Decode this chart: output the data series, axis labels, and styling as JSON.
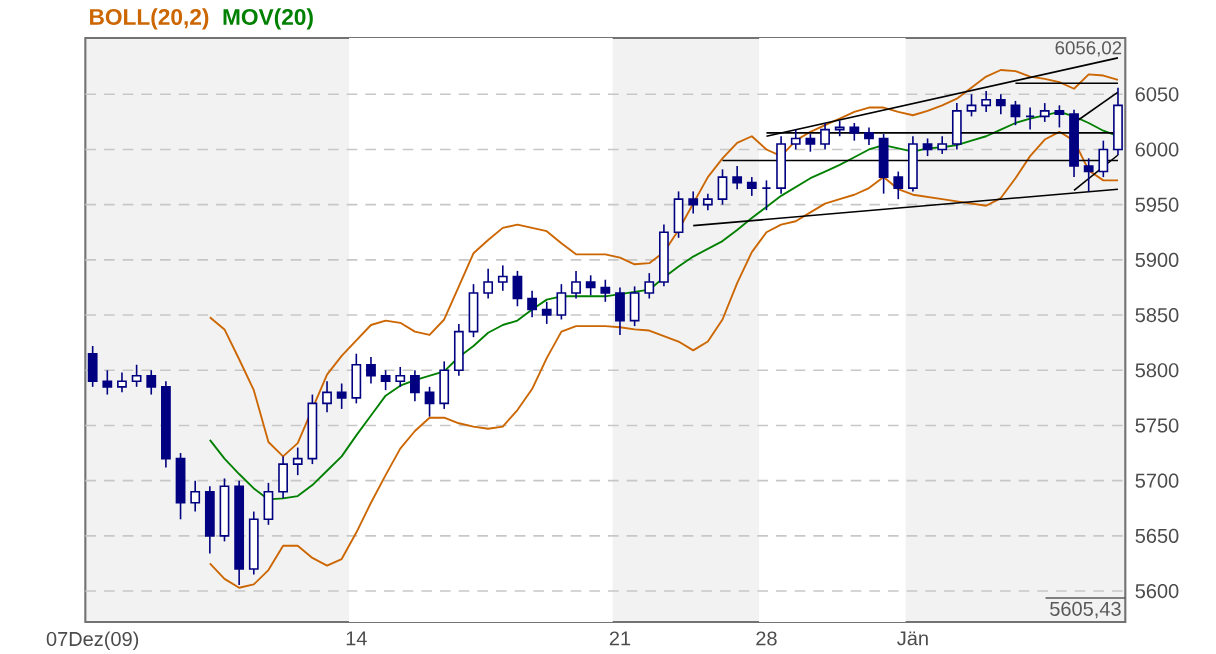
{
  "chart_data": {
    "type": "candlestick",
    "color": "#000080",
    "categories": [
      "07Dez(09)",
      null,
      null,
      null,
      null,
      null,
      null,
      null,
      null,
      null,
      null,
      null,
      null,
      null,
      null,
      null,
      null,
      null,
      "14",
      null,
      null,
      null,
      null,
      null,
      null,
      null,
      null,
      null,
      null,
      null,
      null,
      null,
      null,
      null,
      null,
      null,
      "21",
      null,
      null,
      null,
      null,
      null,
      null,
      null,
      null,
      null,
      "28",
      null,
      null,
      null,
      null,
      null,
      null,
      null,
      null,
      null,
      "Jän",
      null,
      null,
      null,
      null,
      null,
      null,
      null,
      null,
      null,
      null,
      null,
      null,
      null,
      null
    ],
    "ohlc": [
      [
        5815,
        5822,
        5785,
        5790
      ],
      [
        5790,
        5800,
        5778,
        5785
      ],
      [
        5785,
        5798,
        5780,
        5790
      ],
      [
        5790,
        5805,
        5785,
        5795
      ],
      [
        5795,
        5800,
        5778,
        5785
      ],
      [
        5785,
        5790,
        5712,
        5720
      ],
      [
        5720,
        5725,
        5665,
        5680
      ],
      [
        5680,
        5700,
        5672,
        5690
      ],
      [
        5690,
        5695,
        5634,
        5650
      ],
      [
        5650,
        5702,
        5645,
        5695
      ],
      [
        5695,
        5700,
        5605.43,
        5620
      ],
      [
        5620,
        5672,
        5615,
        5665
      ],
      [
        5665,
        5698,
        5660,
        5690
      ],
      [
        5690,
        5722,
        5684,
        5715
      ],
      [
        5715,
        5730,
        5705,
        5720
      ],
      [
        5720,
        5778,
        5715,
        5770
      ],
      [
        5770,
        5790,
        5762,
        5780
      ],
      [
        5780,
        5788,
        5765,
        5775
      ],
      [
        5775,
        5815,
        5770,
        5805
      ],
      [
        5805,
        5812,
        5788,
        5795
      ],
      [
        5795,
        5800,
        5782,
        5790
      ],
      [
        5790,
        5803,
        5785,
        5795
      ],
      [
        5795,
        5800,
        5772,
        5780
      ],
      [
        5780,
        5785,
        5758,
        5770
      ],
      [
        5770,
        5808,
        5765,
        5800
      ],
      [
        5800,
        5842,
        5795,
        5835
      ],
      [
        5835,
        5878,
        5830,
        5870
      ],
      [
        5870,
        5892,
        5865,
        5880
      ],
      [
        5880,
        5895,
        5872,
        5885
      ],
      [
        5885,
        5890,
        5858,
        5865
      ],
      [
        5865,
        5872,
        5848,
        5855
      ],
      [
        5855,
        5862,
        5842,
        5850
      ],
      [
        5850,
        5878,
        5846,
        5870
      ],
      [
        5870,
        5890,
        5865,
        5880
      ],
      [
        5880,
        5886,
        5868,
        5875
      ],
      [
        5875,
        5882,
        5862,
        5870
      ],
      [
        5870,
        5875,
        5832,
        5845
      ],
      [
        5845,
        5876,
        5840,
        5870
      ],
      [
        5870,
        5888,
        5865,
        5880
      ],
      [
        5880,
        5932,
        5876,
        5925
      ],
      [
        5925,
        5962,
        5920,
        5955
      ],
      [
        5955,
        5962,
        5942,
        5950
      ],
      [
        5950,
        5960,
        5945,
        5955
      ],
      [
        5955,
        5982,
        5950,
        5975
      ],
      [
        5975,
        5985,
        5964,
        5970
      ],
      [
        5970,
        5975,
        5958,
        5965
      ],
      [
        5965,
        5972,
        5945,
        5965
      ],
      [
        5965,
        6012,
        5960,
        6005
      ],
      [
        6005,
        6018,
        6000,
        6010
      ],
      [
        6010,
        6014,
        5998,
        6005
      ],
      [
        6005,
        6024,
        6000,
        6018
      ],
      [
        6018,
        6026,
        6012,
        6020
      ],
      [
        6020,
        6024,
        6008,
        6015
      ],
      [
        6015,
        6020,
        6004,
        6010
      ],
      [
        6010,
        6014,
        5960,
        5975
      ],
      [
        5975,
        5980,
        5955,
        5965
      ],
      [
        5965,
        6012,
        5962,
        6005
      ],
      [
        6005,
        6010,
        5994,
        6000
      ],
      [
        6000,
        6012,
        5996,
        6005
      ],
      [
        6005,
        6042,
        6000,
        6035
      ],
      [
        6035,
        6050,
        6030,
        6040
      ],
      [
        6040,
        6053,
        6034,
        6045
      ],
      [
        6045,
        6050,
        6032,
        6040
      ],
      [
        6040,
        6044,
        6022,
        6030
      ],
      [
        6030,
        6038,
        6018,
        6030
      ],
      [
        6030,
        6042,
        6025,
        6035
      ],
      [
        6035,
        6040,
        6020,
        6032
      ],
      [
        6032,
        6036,
        5975,
        5985
      ],
      [
        5985,
        5992,
        5962,
        5980
      ],
      [
        5980,
        6008,
        5975,
        6000
      ],
      [
        6000,
        6056.02,
        5995,
        6040
      ]
    ],
    "series": [
      {
        "type": "line",
        "name": "BOLL(20,2)",
        "color": "#cc6600",
        "values": [
          null,
          null,
          null,
          null,
          null,
          null,
          null,
          null,
          5848,
          5837,
          5810,
          5782,
          5735,
          5722,
          5734,
          null,
          5796,
          5813,
          5827,
          5841,
          5845,
          5843,
          5835,
          5832,
          5846,
          5876,
          5906,
          5918,
          5929,
          5932,
          5929,
          5926,
          5915,
          5905,
          5905,
          5905,
          5902,
          5896,
          5897,
          5907,
          5927,
          5951,
          5975,
          5992,
          6006,
          6012,
          6000,
          5994,
          6008,
          6016,
          6022,
          6028,
          6034,
          6038,
          6038,
          6034,
          6031,
          6035,
          6040,
          6046,
          6056,
          6066,
          6072,
          6071,
          6066,
          6064,
          6061,
          6055,
          6068,
          6067,
          6063
        ]
      },
      {
        "type": "line",
        "color": "#cc6600",
        "values": [
          null,
          null,
          null,
          null,
          null,
          null,
          null,
          null,
          5625,
          5611,
          5603,
          5606,
          5619,
          5641,
          5641,
          5630,
          5623,
          5629,
          5653,
          5680,
          5705,
          5729,
          5745,
          5757,
          5757,
          5752,
          5749,
          5747,
          5749,
          5764,
          5783,
          5811,
          5835,
          5840,
          5840,
          5840,
          5839,
          5837,
          5836,
          5831,
          5826,
          5818,
          5826,
          5846,
          5879,
          5907,
          5925,
          5932,
          5935,
          5943,
          5951,
          5955,
          5959,
          5965,
          5975,
          5964,
          5959,
          5957,
          5955,
          5953,
          5951,
          5949,
          5956,
          5974,
          5994,
          6009,
          6016,
          6008,
          5981,
          5972,
          5972
        ]
      },
      {
        "type": "line",
        "name": "MOV(20)",
        "color": "#008000",
        "values": [
          null,
          null,
          null,
          null,
          null,
          null,
          null,
          null,
          5737,
          5720,
          5706,
          5693,
          5683,
          5684,
          5686,
          5696,
          5709,
          5722,
          5741,
          5759,
          5777,
          5786,
          5791,
          5795,
          5799,
          5812,
          5822,
          5834,
          5841,
          5845,
          5855,
          5864,
          5867,
          5867,
          5867,
          5867,
          5869,
          5871,
          5873,
          5884,
          5894,
          5903,
          5910,
          5917,
          5927,
          5938,
          5948,
          5958,
          5966,
          5974,
          5980,
          5986,
          5993,
          6000,
          6004,
          6001,
          5998,
          6001,
          6002,
          6004,
          6008,
          6012,
          6018,
          6024,
          6028,
          6031,
          6034,
          6030,
          6024,
          6017,
          6012
        ]
      },
      {
        "type": "line",
        "color": "#000000",
        "values": [
          null,
          null,
          null,
          null,
          null,
          null,
          null,
          null,
          null,
          null,
          null,
          null,
          null,
          null,
          null,
          null,
          null,
          null,
          null,
          null,
          null,
          null,
          null,
          null,
          null,
          null,
          null,
          null,
          null,
          null,
          null,
          null,
          null,
          null,
          null,
          null,
          null,
          null,
          null,
          null,
          null,
          null,
          null,
          null,
          null,
          null,
          6012,
          null,
          null,
          null,
          null,
          null,
          null,
          null,
          null,
          null,
          null,
          null,
          null,
          null,
          null,
          null,
          null,
          null,
          null,
          null,
          null,
          null,
          null,
          null,
          6083
        ]
      },
      {
        "type": "line",
        "color": "#000000",
        "values": [
          null,
          null,
          null,
          null,
          null,
          null,
          null,
          null,
          null,
          null,
          null,
          null,
          null,
          null,
          null,
          null,
          null,
          null,
          null,
          null,
          null,
          null,
          null,
          null,
          null,
          null,
          null,
          null,
          null,
          null,
          null,
          null,
          null,
          null,
          null,
          null,
          null,
          null,
          null,
          null,
          null,
          null,
          null,
          null,
          null,
          null,
          null,
          null,
          null,
          null,
          null,
          null,
          null,
          null,
          null,
          null,
          null,
          null,
          null,
          null,
          null,
          null,
          null,
          6060,
          null,
          null,
          null,
          null,
          null,
          null,
          6060
        ]
      },
      {
        "type": "line",
        "color": "#000000",
        "values": [
          null,
          null,
          null,
          null,
          null,
          null,
          null,
          null,
          null,
          null,
          null,
          null,
          null,
          null,
          null,
          null,
          null,
          null,
          null,
          null,
          null,
          null,
          null,
          null,
          null,
          null,
          null,
          null,
          null,
          null,
          null,
          null,
          null,
          null,
          null,
          null,
          null,
          null,
          null,
          null,
          null,
          null,
          null,
          null,
          null,
          null,
          6015,
          null,
          null,
          null,
          null,
          null,
          null,
          null,
          null,
          null,
          null,
          null,
          null,
          null,
          null,
          null,
          null,
          null,
          null,
          null,
          null,
          null,
          null,
          null,
          6015
        ]
      },
      {
        "type": "line",
        "color": "#000000",
        "values": [
          null,
          null,
          null,
          null,
          null,
          null,
          null,
          null,
          null,
          null,
          null,
          null,
          null,
          null,
          null,
          null,
          null,
          null,
          null,
          null,
          null,
          null,
          null,
          null,
          null,
          null,
          null,
          null,
          null,
          null,
          null,
          null,
          null,
          null,
          null,
          null,
          null,
          null,
          null,
          null,
          null,
          null,
          null,
          5990,
          null,
          null,
          null,
          null,
          null,
          null,
          null,
          null,
          null,
          null,
          null,
          null,
          null,
          null,
          null,
          null,
          null,
          null,
          null,
          null,
          null,
          null,
          null,
          null,
          null,
          null,
          5990
        ]
      },
      {
        "type": "line",
        "color": "#000000",
        "values": [
          null,
          null,
          null,
          null,
          null,
          null,
          null,
          null,
          null,
          null,
          null,
          null,
          null,
          null,
          null,
          null,
          null,
          null,
          null,
          null,
          null,
          null,
          null,
          null,
          null,
          null,
          null,
          null,
          null,
          null,
          null,
          null,
          null,
          null,
          null,
          null,
          null,
          null,
          null,
          null,
          null,
          5931,
          null,
          null,
          null,
          null,
          null,
          null,
          null,
          null,
          null,
          null,
          null,
          null,
          null,
          null,
          null,
          null,
          null,
          null,
          null,
          null,
          null,
          null,
          null,
          null,
          null,
          null,
          null,
          null,
          5964
        ]
      },
      {
        "type": "line",
        "color": "#000000",
        "values": [
          null,
          null,
          null,
          null,
          null,
          null,
          null,
          null,
          null,
          null,
          null,
          null,
          null,
          null,
          null,
          null,
          null,
          null,
          null,
          null,
          null,
          null,
          null,
          null,
          null,
          null,
          null,
          null,
          null,
          null,
          null,
          null,
          null,
          null,
          null,
          null,
          null,
          null,
          null,
          null,
          null,
          null,
          null,
          null,
          null,
          null,
          null,
          null,
          null,
          null,
          null,
          null,
          null,
          null,
          null,
          null,
          null,
          null,
          null,
          null,
          null,
          null,
          null,
          null,
          null,
          null,
          null,
          6024,
          null,
          null,
          6052
        ]
      },
      {
        "type": "line",
        "color": "#000000",
        "values": [
          null,
          null,
          null,
          null,
          null,
          null,
          null,
          null,
          null,
          null,
          null,
          null,
          null,
          null,
          null,
          null,
          null,
          null,
          null,
          null,
          null,
          null,
          null,
          null,
          null,
          null,
          null,
          null,
          null,
          null,
          null,
          null,
          null,
          null,
          null,
          null,
          null,
          null,
          null,
          null,
          null,
          null,
          null,
          null,
          null,
          null,
          null,
          null,
          null,
          null,
          null,
          null,
          null,
          null,
          null,
          null,
          null,
          null,
          null,
          null,
          null,
          null,
          null,
          null,
          null,
          null,
          null,
          5963,
          null,
          null,
          5995
        ]
      }
    ],
    "ylim": [
      5572,
      6101
    ],
    "yticks": [
      5600,
      5650,
      5700,
      5750,
      5800,
      5850,
      5900,
      5950,
      6000,
      6050
    ],
    "grid": "y",
    "legend": "top left",
    "bands": [
      {
        "axis": "x",
        "from": "14",
        "to": "21",
        "color": "#ffffff"
      },
      {
        "axis": "x",
        "from": "28",
        "to": "Jän",
        "color": "#ffffff"
      }
    ],
    "annotations": [
      "6056,02",
      "5605,43"
    ]
  }
}
